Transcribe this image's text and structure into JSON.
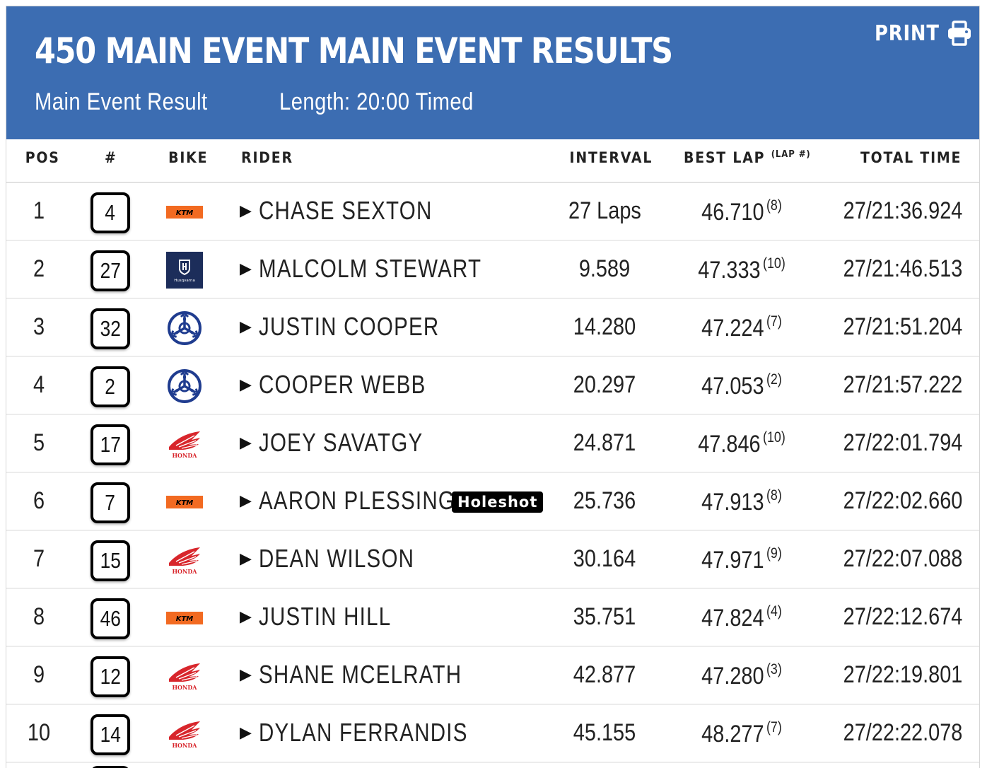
{
  "header": {
    "title": "450 MAIN EVENT MAIN EVENT RESULTS",
    "subtitle": "Main Event Result",
    "length": "Length: 20:00 Timed",
    "print_label": "PRINT",
    "background": "#3c6db2"
  },
  "columns": {
    "pos": "POS",
    "number": "#",
    "bike": "BIKE",
    "rider": "RIDER",
    "interval": "INTERVAL",
    "best_lap": "BEST LAP",
    "best_lap_sup": "(LAP #)",
    "total_time": "TOTAL TIME"
  },
  "rows": [
    {
      "pos": "1",
      "num": "4",
      "bike": "ktm",
      "rider": "CHASE SEXTON",
      "badge": "",
      "interval": "27 Laps",
      "best_lap": "46.710",
      "lap": "(8)",
      "total": "27/21:36.924"
    },
    {
      "pos": "2",
      "num": "27",
      "bike": "husqvarna",
      "rider": "MALCOLM STEWART",
      "badge": "",
      "interval": "9.589",
      "best_lap": "47.333",
      "lap": "(10)",
      "total": "27/21:46.513"
    },
    {
      "pos": "3",
      "num": "32",
      "bike": "yamaha",
      "rider": "JUSTIN COOPER",
      "badge": "",
      "interval": "14.280",
      "best_lap": "47.224",
      "lap": "(7)",
      "total": "27/21:51.204"
    },
    {
      "pos": "4",
      "num": "2",
      "bike": "yamaha",
      "rider": "COOPER WEBB",
      "badge": "",
      "interval": "20.297",
      "best_lap": "47.053",
      "lap": "(2)",
      "total": "27/21:57.222"
    },
    {
      "pos": "5",
      "num": "17",
      "bike": "honda",
      "rider": "JOEY SAVATGY",
      "badge": "",
      "interval": "24.871",
      "best_lap": "47.846",
      "lap": "(10)",
      "total": "27/22:01.794"
    },
    {
      "pos": "6",
      "num": "7",
      "bike": "ktm",
      "rider": "AARON PLESSINGER",
      "badge": "Holeshot",
      "interval": "25.736",
      "best_lap": "47.913",
      "lap": "(8)",
      "total": "27/22:02.660"
    },
    {
      "pos": "7",
      "num": "15",
      "bike": "honda",
      "rider": "DEAN WILSON",
      "badge": "",
      "interval": "30.164",
      "best_lap": "47.971",
      "lap": "(9)",
      "total": "27/22:07.088"
    },
    {
      "pos": "8",
      "num": "46",
      "bike": "ktm",
      "rider": "JUSTIN HILL",
      "badge": "",
      "interval": "35.751",
      "best_lap": "47.824",
      "lap": "(4)",
      "total": "27/22:12.674"
    },
    {
      "pos": "9",
      "num": "12",
      "bike": "honda",
      "rider": "SHANE MCELRATH",
      "badge": "",
      "interval": "42.877",
      "best_lap": "47.280",
      "lap": "(3)",
      "total": "27/22:19.801"
    },
    {
      "pos": "10",
      "num": "14",
      "bike": "honda",
      "rider": "DYLAN FERRANDIS",
      "badge": "",
      "interval": "45.155",
      "best_lap": "48.277",
      "lap": "(7)",
      "total": "27/22:22.078"
    }
  ],
  "logos": {
    "ktm_text": "KTM",
    "husqvarna_text": "Husqvarna",
    "honda_text": "HONDA"
  },
  "colors": {
    "ktm": "#f26a21",
    "husqvarna": "#1c2d5a",
    "yamaha": "#1f3c8f",
    "honda": "#d8262c"
  }
}
